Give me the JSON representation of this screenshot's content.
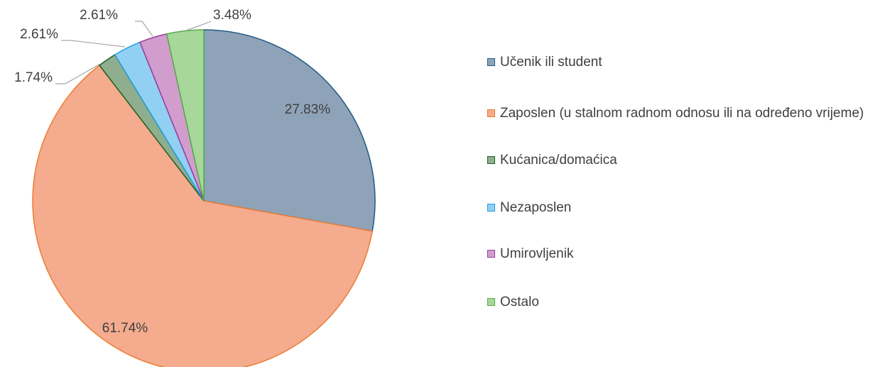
{
  "chart_data": {
    "type": "pie",
    "categories": [
      "Učenik ili student",
      "Zaposlen (u stalnom radnom odnosu ili na određeno vrijeme)",
      "Kućanica/domaćica",
      "Nezaposlen",
      "Umirovljenik",
      "Ostalo"
    ],
    "values": [
      27.83,
      61.74,
      1.74,
      2.61,
      2.61,
      3.48
    ],
    "value_labels": [
      "27.83%",
      "61.74%",
      "1.74%",
      "2.61%",
      "2.61%",
      "3.48%"
    ],
    "colors": [
      "#8fa3b8",
      "#f4ab8e",
      "#8fae8f",
      "#92d0f3",
      "#d19dcd",
      "#a7d79b"
    ],
    "edge_colors": [
      "#1f5a85",
      "#ed7d31",
      "#1e5e1e",
      "#1e9fdf",
      "#9a3b9c",
      "#55ad46"
    ],
    "legend": "right"
  }
}
